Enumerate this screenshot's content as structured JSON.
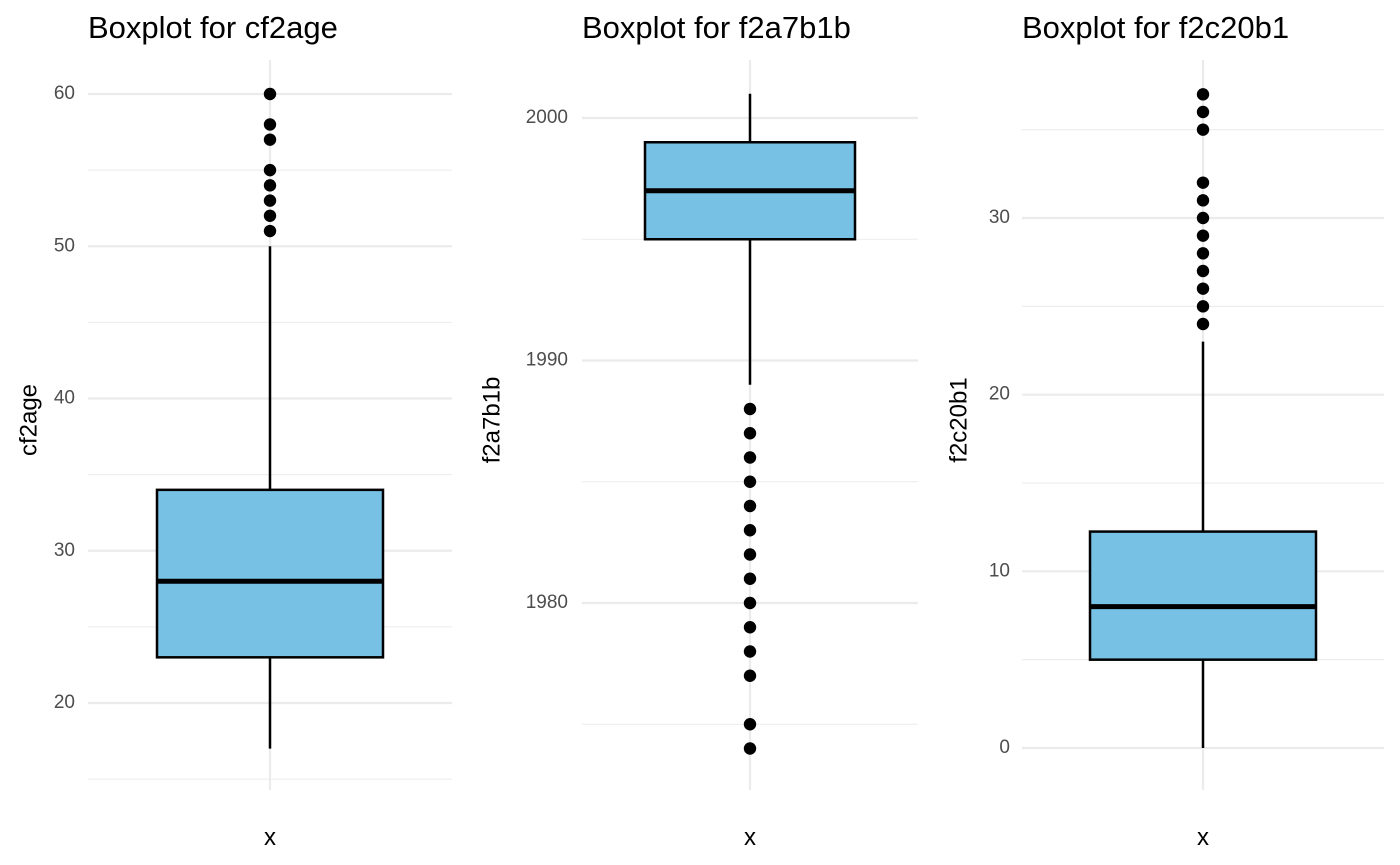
{
  "colors": {
    "box_fill": "#77c1e5",
    "outline": "#000000",
    "grid": "#ebebeb",
    "tick_text": "#4d4d4d",
    "background": "#ffffff"
  },
  "chart_data": [
    {
      "type": "boxplot",
      "title": "Boxplot for cf2age",
      "xlabel": "x",
      "ylabel": "cf2age",
      "ylim": [
        15,
        62.2
      ],
      "yticks": [
        20,
        30,
        40,
        50,
        60
      ],
      "ytick_labels": [
        "20",
        "30",
        "40",
        "50",
        "60"
      ],
      "yminor": [
        15,
        25,
        35,
        45,
        55
      ],
      "stats": {
        "lower_whisker": 17,
        "q1": 23,
        "median": 28,
        "q3": 34,
        "upper_whisker": 50
      },
      "outliers": [
        51,
        52,
        53,
        54,
        55,
        57,
        58,
        60
      ],
      "grid": true
    },
    {
      "type": "boxplot",
      "title": "Boxplot for f2a7b1b",
      "xlabel": "x",
      "ylabel": "f2a7b1b",
      "ylim": [
        1972.8,
        2002
      ],
      "yticks": [
        1980,
        1990,
        2000
      ],
      "ytick_labels": [
        "1980",
        "1990",
        "2000"
      ],
      "yminor": [
        1975,
        1985,
        1995
      ],
      "stats": {
        "lower_whisker": 1989,
        "q1": 1995,
        "median": 1997,
        "q3": 1999,
        "upper_whisker": 2001
      },
      "outliers": [
        1974,
        1975,
        1977,
        1978,
        1979,
        1980,
        1981,
        1982,
        1983,
        1984,
        1985,
        1986,
        1987,
        1988
      ],
      "grid": true
    },
    {
      "type": "boxplot",
      "title": "Boxplot for f2c20b1",
      "xlabel": "x",
      "ylabel": "f2c20b1",
      "ylim": [
        -1.5,
        38.5
      ],
      "yticks": [
        0,
        10,
        20,
        30
      ],
      "ytick_labels": [
        "0",
        "10",
        "20",
        "30"
      ],
      "yminor": [
        5,
        15,
        25,
        35
      ],
      "stats": {
        "lower_whisker": 0,
        "q1": 5,
        "median": 8,
        "q3": 12.25,
        "upper_whisker": 23
      },
      "outliers": [
        24,
        25,
        26,
        27,
        28,
        29,
        30,
        31,
        32,
        35,
        36,
        37
      ],
      "grid": true
    }
  ]
}
